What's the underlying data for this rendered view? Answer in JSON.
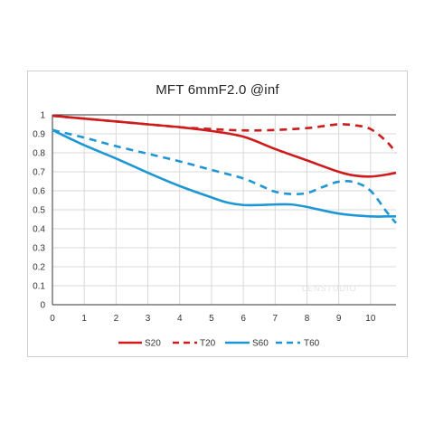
{
  "chart_data": {
    "type": "line",
    "title": "MFT  6mmF2.0 @inf",
    "xlim": [
      0,
      10.8
    ],
    "ylim": [
      0,
      1
    ],
    "x_ticks": [
      "0",
      "1",
      "2",
      "3",
      "4",
      "5",
      "6",
      "7",
      "8",
      "9",
      "10"
    ],
    "y_ticks": [
      "0",
      "0.1",
      "0.2",
      "0.3",
      "0.4",
      "0.5",
      "0.6",
      "0.7",
      "0.8",
      "0.9",
      "1"
    ],
    "grid": true,
    "legend_position": "bottom",
    "series": [
      {
        "name": "S20",
        "color": "#cc1c1c",
        "dash": "solid",
        "x": [
          0,
          1,
          2,
          3,
          4,
          5,
          6,
          7,
          8,
          9,
          9.5,
          10,
          10.5,
          10.8
        ],
        "y": [
          0.995,
          0.98,
          0.965,
          0.95,
          0.935,
          0.915,
          0.885,
          0.82,
          0.76,
          0.7,
          0.68,
          0.675,
          0.685,
          0.695
        ]
      },
      {
        "name": "T20",
        "color": "#cc1c1c",
        "dash": "dashed",
        "x": [
          0,
          1,
          2,
          3,
          4,
          5,
          6,
          7,
          8,
          8.5,
          9,
          9.5,
          10,
          10.5,
          10.8
        ],
        "y": [
          0.995,
          0.98,
          0.965,
          0.95,
          0.935,
          0.925,
          0.918,
          0.92,
          0.93,
          0.94,
          0.95,
          0.945,
          0.925,
          0.86,
          0.8
        ]
      },
      {
        "name": "S60",
        "color": "#1f97d4",
        "dash": "solid",
        "x": [
          0,
          1,
          2,
          3,
          4,
          5,
          5.5,
          6,
          6.5,
          7,
          7.5,
          8,
          9,
          10,
          10.5,
          10.8
        ],
        "y": [
          0.92,
          0.84,
          0.77,
          0.695,
          0.625,
          0.565,
          0.538,
          0.525,
          0.525,
          0.528,
          0.528,
          0.515,
          0.48,
          0.465,
          0.465,
          0.465
        ]
      },
      {
        "name": "T60",
        "color": "#1f97d4",
        "dash": "dashed",
        "x": [
          0,
          1,
          2,
          3,
          4,
          5,
          6,
          6.5,
          7,
          7.5,
          8,
          8.5,
          9,
          9.5,
          10,
          10.5,
          10.8
        ],
        "y": [
          0.92,
          0.88,
          0.835,
          0.795,
          0.755,
          0.71,
          0.665,
          0.63,
          0.595,
          0.583,
          0.588,
          0.62,
          0.648,
          0.645,
          0.6,
          0.49,
          0.43
        ]
      }
    ]
  },
  "watermark": "LENSTUDIO"
}
